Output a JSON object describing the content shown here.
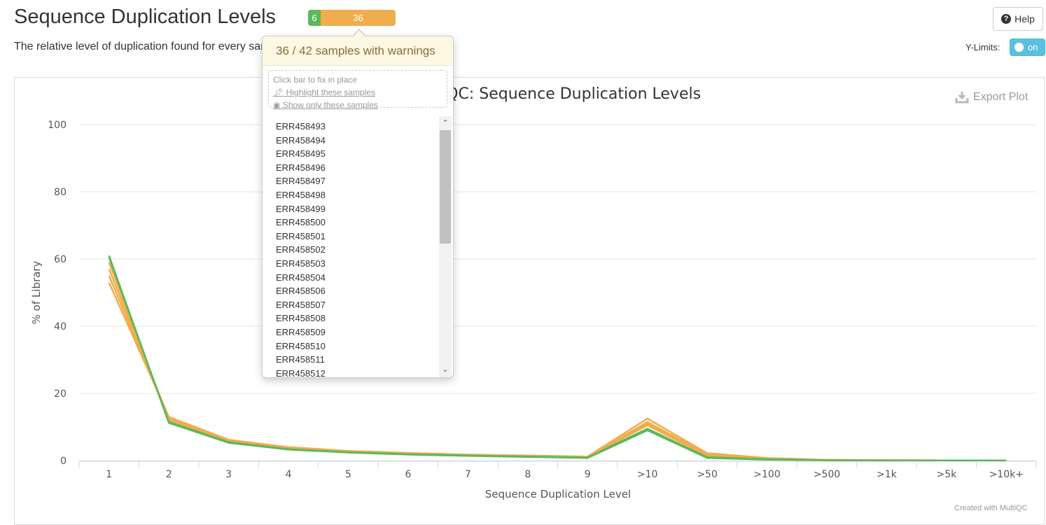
{
  "header": {
    "title": "Sequence Duplication Levels",
    "description": "The relative level of duplication found for every sample.",
    "status": {
      "pass_count": "6",
      "warn_count": "36",
      "pass_color": "#5cb85c",
      "warn_color": "#f0ad4e"
    }
  },
  "toolbar": {
    "help_label": "Help",
    "ylimits_label": "Y-Limits:",
    "ylimits_toggle": "on",
    "export_label": "Export Plot"
  },
  "popover": {
    "title": "36 / 42 samples with warnings",
    "hint": "Click bar to fix in place",
    "highlight_label": " Highlight these samples",
    "show_only_label": " Show only these samples",
    "samples": [
      "ERR458493",
      "ERR458494",
      "ERR458495",
      "ERR458496",
      "ERR458497",
      "ERR458498",
      "ERR458499",
      "ERR458500",
      "ERR458501",
      "ERR458502",
      "ERR458503",
      "ERR458504",
      "ERR458506",
      "ERR458507",
      "ERR458508",
      "ERR458509",
      "ERR458510",
      "ERR458511",
      "ERR458512"
    ]
  },
  "credit": "Created with MultiQC",
  "chart_data": {
    "type": "line",
    "title": "FastQC: Sequence Duplication Levels",
    "xlabel": "Sequence Duplication Level",
    "ylabel": "% of Library",
    "categories": [
      "1",
      "2",
      "3",
      "4",
      "5",
      "6",
      "7",
      "8",
      "9",
      ">10",
      ">50",
      ">100",
      ">500",
      ">1k",
      ">5k",
      ">10k+"
    ],
    "ylim": [
      0,
      100
    ],
    "yticks": [
      0,
      20,
      40,
      60,
      80,
      100
    ],
    "grid": true,
    "series": [
      {
        "color": "#f0ad4e",
        "values": [
          53,
          13,
          6.2,
          4.0,
          2.9,
          2.3,
          1.8,
          1.5,
          1.2,
          12.5,
          2.2,
          0.8,
          0.2,
          0.1,
          0.05,
          0.05
        ]
      },
      {
        "color": "#f0ad4e",
        "values": [
          55,
          12.8,
          6.0,
          3.8,
          2.8,
          2.2,
          1.7,
          1.4,
          1.1,
          11.5,
          1.9,
          0.7,
          0.2,
          0.1,
          0.05,
          0.05
        ]
      },
      {
        "color": "#f0ad4e",
        "values": [
          57,
          12.5,
          5.8,
          3.6,
          2.7,
          2.1,
          1.6,
          1.3,
          1.0,
          11.0,
          1.6,
          0.6,
          0.2,
          0.1,
          0.05,
          0.05
        ]
      },
      {
        "color": "#f0ad4e",
        "values": [
          59,
          12.0,
          5.6,
          3.5,
          2.6,
          2.0,
          1.6,
          1.3,
          1.0,
          10.5,
          1.4,
          0.5,
          0.1,
          0.05,
          0.05,
          0.05
        ]
      },
      {
        "color": "#5cb85c",
        "values": [
          60.5,
          11.5,
          5.5,
          3.4,
          2.5,
          1.9,
          1.5,
          1.2,
          0.9,
          9.5,
          1.0,
          0.4,
          0.1,
          0.05,
          0.05,
          0.05
        ]
      },
      {
        "color": "#5cb85c",
        "values": [
          61,
          11.2,
          5.3,
          3.3,
          2.4,
          1.8,
          1.4,
          1.1,
          0.8,
          9.0,
          0.8,
          0.3,
          0.1,
          0.05,
          0.05,
          0.05
        ]
      }
    ]
  }
}
